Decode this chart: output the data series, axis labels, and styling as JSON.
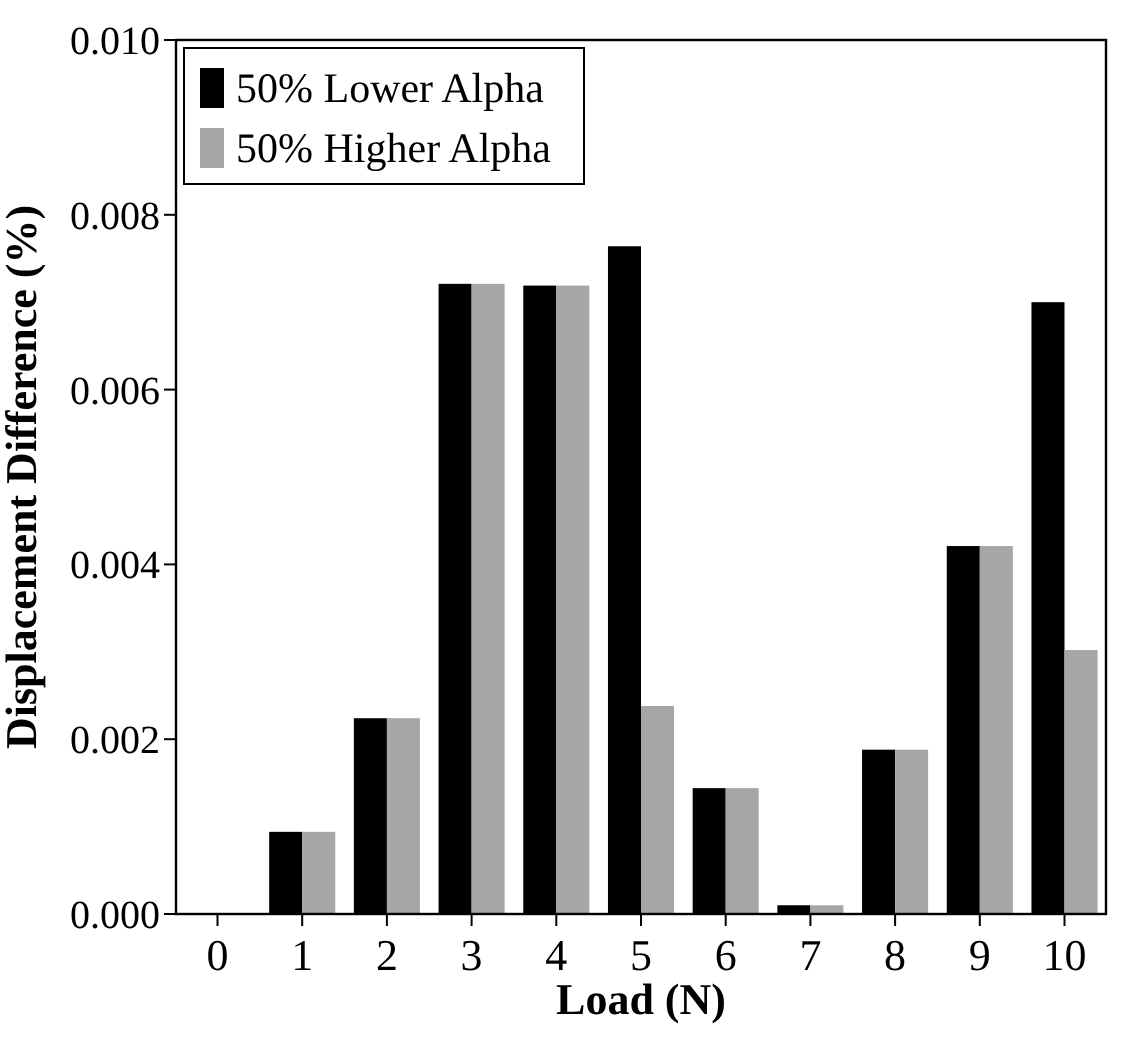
{
  "chart_data": {
    "type": "bar",
    "xlabel": "Load (N)",
    "ylabel": "Displacement Difference (%)",
    "categories": [
      "0",
      "1",
      "2",
      "3",
      "4",
      "5",
      "6",
      "7",
      "8",
      "9",
      "10"
    ],
    "series": [
      {
        "name": "50% Lower Alpha",
        "color": "#000000",
        "values": [
          0,
          0.00094,
          0.00224,
          0.00721,
          0.00719,
          0.00764,
          0.00144,
          0.0001,
          0.00188,
          0.00421,
          0.007
        ]
      },
      {
        "name": "50% Higher Alpha",
        "color": "#a6a6a6",
        "values": [
          0,
          0.00094,
          0.00224,
          0.00721,
          0.00719,
          0.00238,
          0.00144,
          0.0001,
          0.00188,
          0.00421,
          0.00302
        ]
      }
    ],
    "ylim": [
      0,
      0.01
    ],
    "yticks": [
      {
        "value": 0,
        "label": "0.000"
      },
      {
        "value": 0.002,
        "label": "0.002"
      },
      {
        "value": 0.004,
        "label": "0.004"
      },
      {
        "value": 0.006,
        "label": "0.006"
      },
      {
        "value": 0.008,
        "label": "0.008"
      },
      {
        "value": 0.01,
        "label": "0.010"
      }
    ],
    "grid": false,
    "legend": "top left"
  }
}
